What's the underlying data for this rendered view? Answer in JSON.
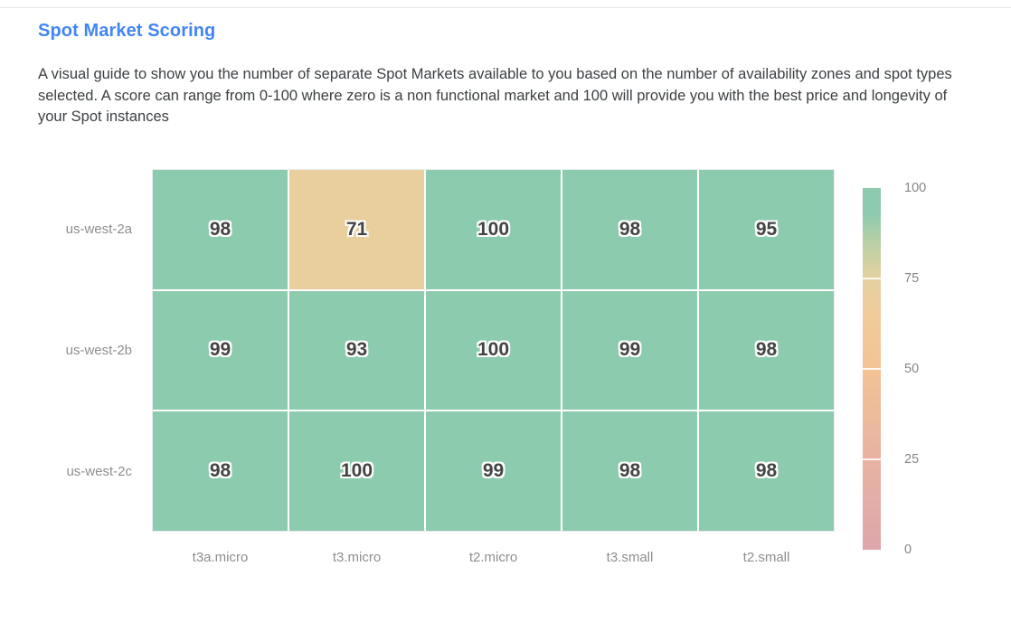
{
  "page": {
    "title": "Spot Market Scoring",
    "description": "A visual guide to show you the number of separate Spot Markets available to you based on the number of availability zones and spot types selected. A score can range from 0-100 where zero is a non functional market and 100 will provide you with the best price and longevity of your Spot instances"
  },
  "colors": {
    "title_accent": "#4285f4",
    "body_text": "#3c4043",
    "axis_label": "#8e8e8e",
    "cell_value_text": "#444444",
    "cell_value_outline": "#ffffff",
    "grid_gap": "#ffffff"
  },
  "chart_data": {
    "type": "heatmap",
    "title": "Spot Market Scoring",
    "rows": [
      "us-west-2a",
      "us-west-2b",
      "us-west-2c"
    ],
    "columns": [
      "t3a.micro",
      "t3.micro",
      "t2.micro",
      "t3.small",
      "t2.small"
    ],
    "values": [
      [
        98,
        71,
        100,
        98,
        95
      ],
      [
        99,
        93,
        100,
        99,
        98
      ],
      [
        98,
        100,
        99,
        98,
        98
      ]
    ],
    "value_range": [
      0,
      100
    ],
    "legend_ticks": [
      100,
      75,
      50,
      25,
      0
    ],
    "legend_position": "right",
    "color_stops": [
      {
        "value": 0,
        "color": "#dda6ab"
      },
      {
        "value": 25,
        "color": "#e9b2a2"
      },
      {
        "value": 50,
        "color": "#f2c394"
      },
      {
        "value": 65,
        "color": "#f0cc9a"
      },
      {
        "value": 75,
        "color": "#e4d1a0"
      },
      {
        "value": 85,
        "color": "#b9cfa6"
      },
      {
        "value": 93,
        "color": "#8dcbae"
      },
      {
        "value": 100,
        "color": "#8dcbae"
      }
    ]
  }
}
